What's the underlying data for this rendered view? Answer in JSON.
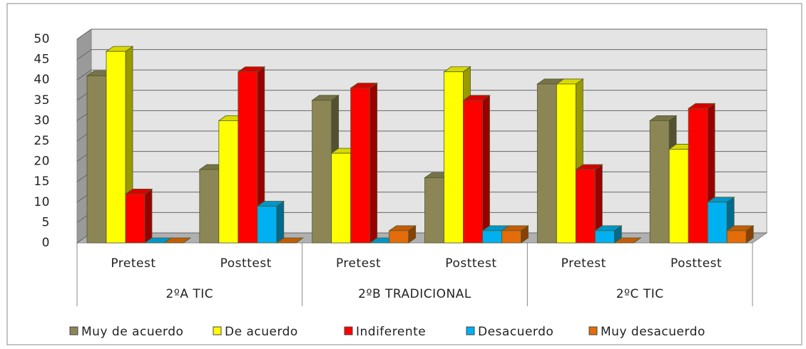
{
  "chart_data": {
    "type": "bar3d",
    "groups": [
      "2ºA TIC",
      "2ºB TRADICIONAL",
      "2ºC TIC"
    ],
    "categories": [
      "Pretest",
      "Posttest",
      "Pretest",
      "Posttest",
      "Pretest",
      "Posttest"
    ],
    "series": [
      {
        "name": "Muy de acuerdo",
        "color": "#8c8656",
        "values": [
          41,
          18,
          35,
          16,
          39,
          30
        ]
      },
      {
        "name": "De acuerdo",
        "color": "#ffff00",
        "values": [
          47,
          30,
          22,
          42,
          39,
          23
        ]
      },
      {
        "name": "Indiferente",
        "color": "#ff0000",
        "values": [
          12,
          42,
          38,
          35,
          18,
          33
        ]
      },
      {
        "name": "Desacuerdo",
        "color": "#00b0f0",
        "values": [
          0,
          9,
          0,
          3,
          3,
          10
        ]
      },
      {
        "name": "Muy desacuerdo",
        "color": "#e46c0a",
        "values": [
          0,
          0,
          3,
          3,
          0,
          3
        ]
      }
    ],
    "ylim": [
      0,
      50
    ],
    "yticks": [
      0,
      5,
      10,
      15,
      20,
      25,
      30,
      35,
      40,
      45,
      50
    ],
    "grid": true,
    "legend": "bottom"
  }
}
